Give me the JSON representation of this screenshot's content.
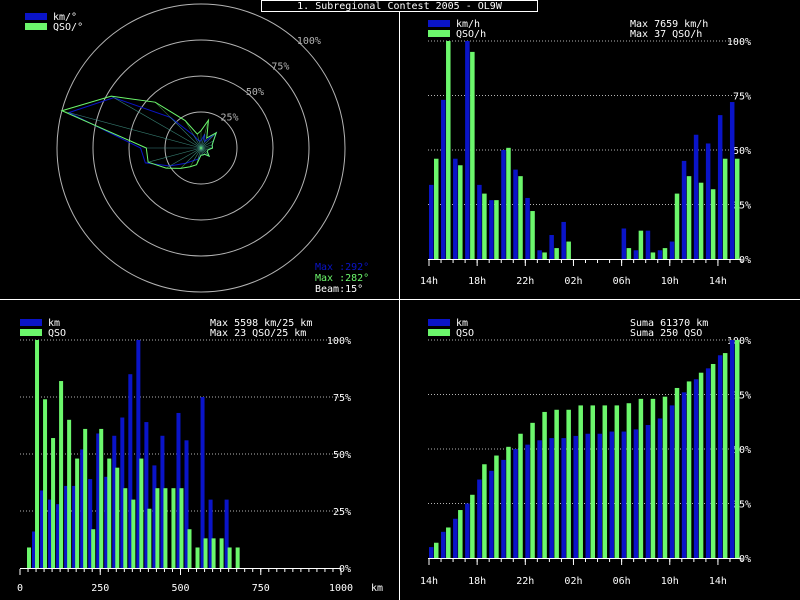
{
  "title": "1. Subregional Contest 2005 - OL9W",
  "colors": {
    "background": "#000000",
    "blue": "#0a14c8",
    "green": "#6cf76c",
    "white": "#ffffff",
    "grid": "#b4b4b4"
  },
  "polar": {
    "legend": [
      "km/°",
      "QSO/°"
    ],
    "ring_labels": [
      "25%",
      "50%",
      "75%",
      "100%"
    ],
    "max_blue_text": "Max :292°",
    "max_green_text": "Max :282°",
    "beam_text": "Beam:15°"
  },
  "chart_data": [
    {
      "id": "polar",
      "type": "radar",
      "title": "",
      "angle_step_deg": 15,
      "angles_deg": [
        0,
        15,
        30,
        45,
        60,
        75,
        90,
        105,
        120,
        135,
        150,
        165,
        180,
        195,
        210,
        225,
        240,
        255,
        270,
        285,
        300,
        315,
        330,
        345
      ],
      "radius_range_pct": [
        0,
        100
      ],
      "series": [
        {
          "name": "km/°",
          "color": "blue",
          "values": [
            5,
            10,
            5,
            15,
            10,
            8,
            8,
            5,
            5,
            8,
            5,
            5,
            5,
            8,
            10,
            15,
            25,
            40,
            42,
            95,
            70,
            30,
            10,
            5
          ]
        },
        {
          "name": "QSO/°",
          "color": "green",
          "values": [
            12,
            20,
            8,
            15,
            10,
            8,
            8,
            5,
            5,
            8,
            5,
            5,
            5,
            12,
            15,
            20,
            28,
            38,
            38,
            100,
            72,
            45,
            22,
            10
          ]
        }
      ]
    },
    {
      "id": "time-rate",
      "type": "bar",
      "title": "",
      "legend": [
        "km/h",
        "QSO/h"
      ],
      "max_lines": [
        "Max  7659 km/h",
        "Max    37 QSO/h"
      ],
      "tick_labels": [
        "14h",
        "18h",
        "22h",
        "02h",
        "06h",
        "10h",
        "14h"
      ],
      "ylim": [
        0,
        100
      ],
      "ytick_labels": [
        "0%",
        "25%",
        "50%",
        "75%",
        "100%"
      ],
      "series": [
        {
          "name": "km/h",
          "color": "blue",
          "values": [
            34,
            73,
            46,
            100,
            34,
            27,
            50,
            41,
            28,
            4,
            11,
            17,
            0,
            0,
            0,
            0,
            14,
            4,
            13,
            4,
            8,
            45,
            57,
            53,
            66,
            72
          ]
        },
        {
          "name": "QSO/h",
          "color": "green",
          "values": [
            46,
            100,
            43,
            95,
            30,
            27,
            51,
            38,
            22,
            3,
            5,
            8,
            0,
            0,
            0,
            0,
            5,
            13,
            3,
            5,
            30,
            38,
            35,
            32,
            46,
            46
          ]
        }
      ]
    },
    {
      "id": "distance",
      "type": "bar",
      "title": "",
      "legend": [
        "km",
        "QSO"
      ],
      "max_lines": [
        "Max  5598 km/25 km",
        "Max    23 QSO/25 km"
      ],
      "xlabel": "km",
      "x_tick_values": [
        0,
        250,
        500,
        750,
        1000
      ],
      "tick_labels": [
        "0",
        "250",
        "500",
        "750",
        "1000"
      ],
      "xlim": [
        0,
        1000
      ],
      "ylim": [
        0,
        100
      ],
      "ytick_labels": [
        "0%",
        "25%",
        "50%",
        "75%",
        "100%"
      ],
      "bin_km": 25,
      "series": [
        {
          "name": "km",
          "color": "blue",
          "values": [
            0,
            16,
            34,
            30,
            28,
            36,
            36,
            52,
            39,
            59,
            40,
            58,
            66,
            85,
            100,
            64,
            45,
            58,
            0,
            68,
            56,
            0,
            75,
            30,
            0,
            30,
            0,
            0,
            0,
            0,
            0,
            0,
            0,
            0,
            0,
            0,
            0,
            0,
            0,
            0
          ]
        },
        {
          "name": "QSO",
          "color": "green",
          "values": [
            9,
            100,
            74,
            57,
            82,
            65,
            48,
            61,
            17,
            61,
            48,
            44,
            35,
            30,
            48,
            26,
            35,
            35,
            35,
            35,
            17,
            9,
            13,
            13,
            13,
            9,
            9,
            0,
            0,
            0,
            0,
            0,
            0,
            0,
            0,
            0,
            0,
            0,
            0,
            0
          ]
        }
      ]
    },
    {
      "id": "cumulative",
      "type": "bar",
      "title": "",
      "legend": [
        "km",
        "QSO"
      ],
      "sum_lines": [
        "Suma  61370 km",
        "Suma    250 QSO"
      ],
      "tick_labels": [
        "14h",
        "18h",
        "22h",
        "02h",
        "06h",
        "10h",
        "14h"
      ],
      "ylim": [
        0,
        100
      ],
      "ytick_labels": [
        "0%",
        "25%",
        "50%",
        "75%",
        "100%"
      ],
      "series": [
        {
          "name": "km",
          "color": "blue",
          "values": [
            5,
            12,
            18,
            25,
            36,
            40,
            45,
            50,
            52,
            54,
            55,
            55,
            56,
            57,
            57,
            58,
            58,
            59,
            61,
            64,
            70,
            76,
            82,
            87,
            93,
            100
          ]
        },
        {
          "name": "QSO",
          "color": "green",
          "values": [
            7,
            14,
            22,
            29,
            43,
            47,
            51,
            57,
            62,
            67,
            68,
            68,
            70,
            70,
            70,
            70,
            71,
            73,
            73,
            74,
            78,
            81,
            85,
            89,
            94,
            100
          ]
        }
      ]
    }
  ]
}
